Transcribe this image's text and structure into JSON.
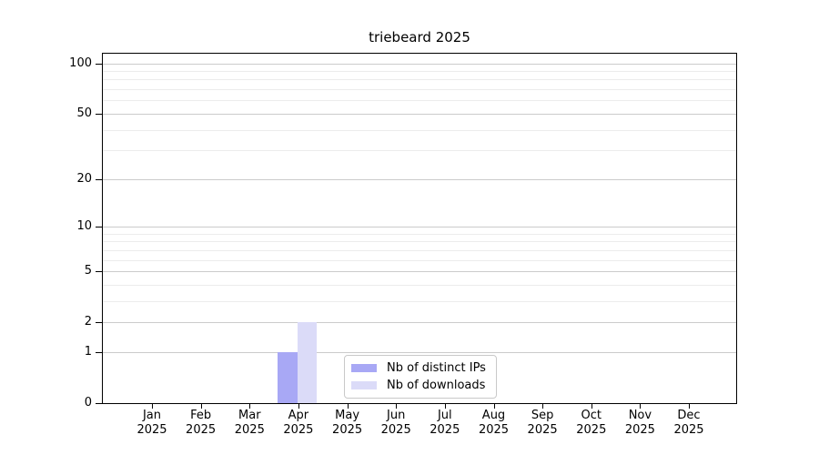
{
  "chart_data": {
    "type": "bar",
    "title": "triebeard 2025",
    "categories": [
      "Jan 2025",
      "Feb 2025",
      "Mar 2025",
      "Apr 2025",
      "May 2025",
      "Jun 2025",
      "Jul 2025",
      "Aug 2025",
      "Sep 2025",
      "Oct 2025",
      "Nov 2025",
      "Dec 2025"
    ],
    "series": [
      {
        "name": "Nb of distinct IPs",
        "color": "#a8a8f5",
        "values": [
          0,
          0,
          0,
          1,
          0,
          0,
          0,
          0,
          0,
          0,
          0,
          0
        ]
      },
      {
        "name": "Nb of downloads",
        "color": "#dbdbf8",
        "values": [
          0,
          0,
          0,
          2,
          0,
          0,
          0,
          0,
          0,
          0,
          0,
          0
        ]
      }
    ],
    "xlabel": "",
    "ylabel": "",
    "yscale": "log1p",
    "y_major_ticks": [
      0,
      1,
      2,
      5,
      10,
      20,
      50,
      100
    ],
    "y_minor_gridlines": [
      3,
      4,
      6,
      7,
      8,
      9,
      30,
      40,
      60,
      70,
      80,
      90
    ],
    "ylim": [
      0,
      114
    ],
    "grid": "horizontal",
    "legend_position": "lower center inside"
  },
  "legend": {
    "items": [
      {
        "label": "Nb of distinct IPs",
        "color": "#a8a8f5"
      },
      {
        "label": "Nb of downloads",
        "color": "#dbdbf8"
      }
    ]
  },
  "colors": {
    "bar_distinct_ips": "#a8a8f5",
    "bar_downloads": "#dbdbf8",
    "grid_major": "#cbcbcb",
    "grid_minor": "#ececec",
    "axis": "#000000",
    "background": "#ffffff",
    "text": "#000000"
  }
}
